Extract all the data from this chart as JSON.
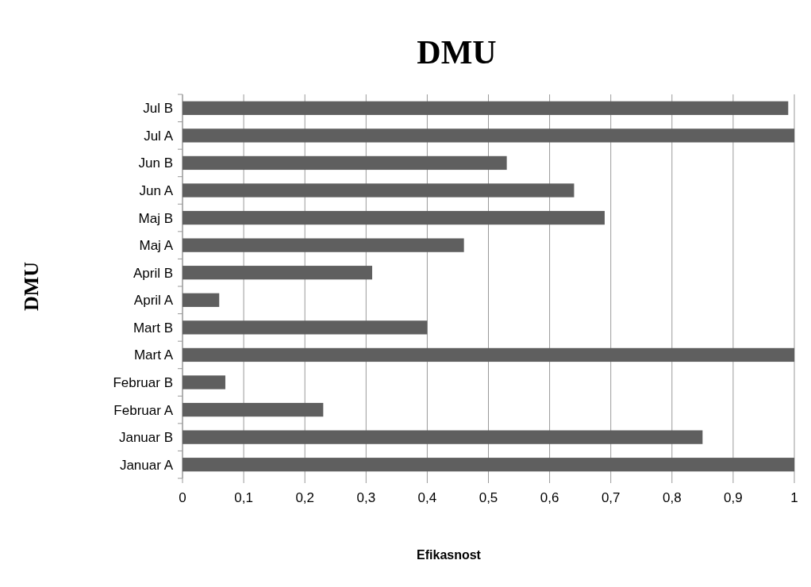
{
  "chart_data": {
    "type": "bar",
    "orientation": "horizontal",
    "title": "DMU",
    "xlabel": "Efikasnost",
    "ylabel": "DMU",
    "categories": [
      "Jul B",
      "Jul A",
      "Jun B",
      "Jun A",
      "Maj B",
      "Maj A",
      "April B",
      "April A",
      "Mart B",
      "Mart A",
      "Februar B",
      "Februar A",
      "Januar B",
      "Januar A"
    ],
    "values": [
      0.99,
      1,
      0.53,
      0.64,
      0.69,
      0.46,
      0.31,
      0.06,
      0.4,
      1,
      0.07,
      0.23,
      0.85,
      1
    ],
    "color": "#5f5f5f",
    "xlim": [
      0,
      1
    ],
    "xticks": [
      0,
      {
        "value": 0.1,
        "label": "0,1"
      },
      {
        "value": 0.2,
        "label": "0,2"
      },
      {
        "value": 0.3,
        "label": "0,3"
      },
      {
        "value": 0.4,
        "label": "0,4"
      },
      {
        "value": 0.5,
        "label": "0,5"
      },
      {
        "value": 0.6,
        "label": "0,6"
      },
      {
        "value": 0.7,
        "label": "0,7"
      },
      {
        "value": 0.8,
        "label": "0,8"
      },
      {
        "value": 0.9,
        "label": "0,9"
      },
      1
    ],
    "grid": "x"
  }
}
